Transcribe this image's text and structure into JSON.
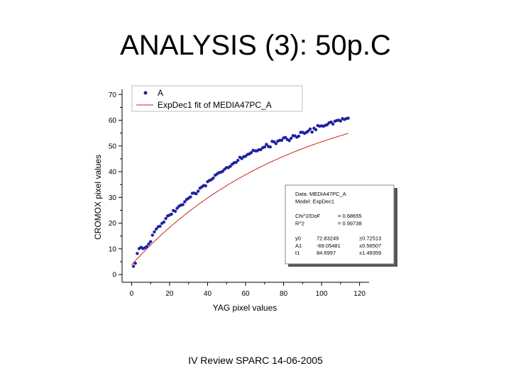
{
  "slide": {
    "title": "ANALYSIS (3): 50p.C",
    "footer": "IV Review SPARC 14-06-2005"
  },
  "chart_data": {
    "type": "scatter",
    "xlabel": "YAG pixel values",
    "ylabel": "CROMOX pixel values",
    "xlim": [
      -5,
      125
    ],
    "ylim": [
      -3,
      72
    ],
    "x_ticks": [
      0,
      20,
      40,
      60,
      80,
      100,
      120
    ],
    "y_ticks": [
      0,
      10,
      20,
      30,
      40,
      50,
      60,
      70
    ],
    "grid": false,
    "legend_position": "top-left",
    "colors": {
      "points": "#2020a0",
      "fit": "#cc2222"
    },
    "series": [
      {
        "name": "A",
        "kind": "points",
        "x": [
          1,
          2,
          3,
          4,
          5,
          6,
          7,
          8,
          9,
          10,
          11,
          12,
          13,
          14,
          15,
          16,
          17,
          18,
          19,
          20,
          21,
          22,
          23,
          24,
          25,
          26,
          27,
          28,
          29,
          30,
          31,
          32,
          33,
          34,
          35,
          36,
          37,
          38,
          39,
          40,
          41,
          42,
          43,
          44,
          45,
          46,
          47,
          48,
          49,
          50,
          51,
          52,
          53,
          54,
          55,
          56,
          57,
          58,
          59,
          60,
          61,
          62,
          63,
          64,
          65,
          66,
          67,
          68,
          69,
          70,
          71,
          72,
          73,
          74,
          75,
          76,
          77,
          78,
          79,
          80,
          81,
          82,
          83,
          84,
          85,
          86,
          87,
          88,
          89,
          90,
          91,
          92,
          93,
          94,
          95,
          96,
          97,
          98,
          99,
          100,
          101,
          102,
          103,
          104,
          105,
          106,
          107,
          108,
          109,
          110,
          111,
          112,
          113,
          114
        ],
        "y": [
          3.2,
          4.4,
          8.2,
          10.1,
          10.6,
          10.1,
          10.4,
          10.9,
          11.9,
          12.8,
          15.3,
          16.6,
          17.7,
          18.6,
          18.8,
          19.9,
          20.4,
          21.8,
          22.8,
          23.1,
          23.5,
          24.9,
          24.6,
          25.8,
          26.6,
          27.0,
          27.2,
          28.3,
          29.2,
          29.7,
          30.2,
          31.6,
          31.7,
          31.4,
          32.4,
          33.6,
          34.1,
          34.6,
          34.5,
          36.1,
          36.6,
          36.9,
          37.5,
          38.6,
          39.1,
          39.6,
          39.8,
          40.2,
          41.0,
          41.6,
          41.6,
          42.1,
          42.9,
          43.5,
          43.6,
          44.4,
          45.6,
          45.1,
          45.8,
          46.0,
          46.7,
          46.9,
          47.4,
          48.3,
          48.1,
          48.1,
          48.5,
          48.6,
          49.3,
          49.6,
          50.6,
          49.8,
          49.6,
          51.8,
          51.6,
          50.9,
          51.9,
          52.2,
          52.2,
          53.1,
          53.3,
          52.5,
          52.1,
          53.0,
          54.0,
          53.9,
          53.4,
          53.8,
          55.3,
          55.3,
          54.9,
          55.3,
          55.8,
          56.6,
          55.4,
          56.9,
          56.3,
          57.9,
          57.7,
          57.8,
          57.7,
          58.0,
          58.3,
          59.0,
          59.3,
          58.5,
          59.6,
          59.9,
          60.0,
          59.7,
          60.6,
          60.3,
          60.6,
          60.8
        ]
      },
      {
        "name": "ExpDec1 fit of MEDIA47PC_A",
        "kind": "fit",
        "model": {
          "y0": 72.83249,
          "A1": -69.05481,
          "t1": 84.6997
        },
        "x_range": [
          0,
          114
        ]
      }
    ],
    "annotation": {
      "lines": [
        [
          "Data: MEDIA47PC_A",
          ""
        ],
        [
          "Model: ExpDec1",
          ""
        ],
        [
          "",
          ""
        ],
        [
          "Chi^2/DoF",
          "= 0.68655"
        ],
        [
          "R^2",
          "= 0.99738"
        ],
        [
          "",
          ""
        ],
        [
          "y0",
          "72.83249",
          "±0.72513"
        ],
        [
          "A1",
          "-69.05481",
          "±0.56507"
        ],
        [
          "t1",
          "84.6997",
          "±1.49359"
        ]
      ]
    }
  }
}
